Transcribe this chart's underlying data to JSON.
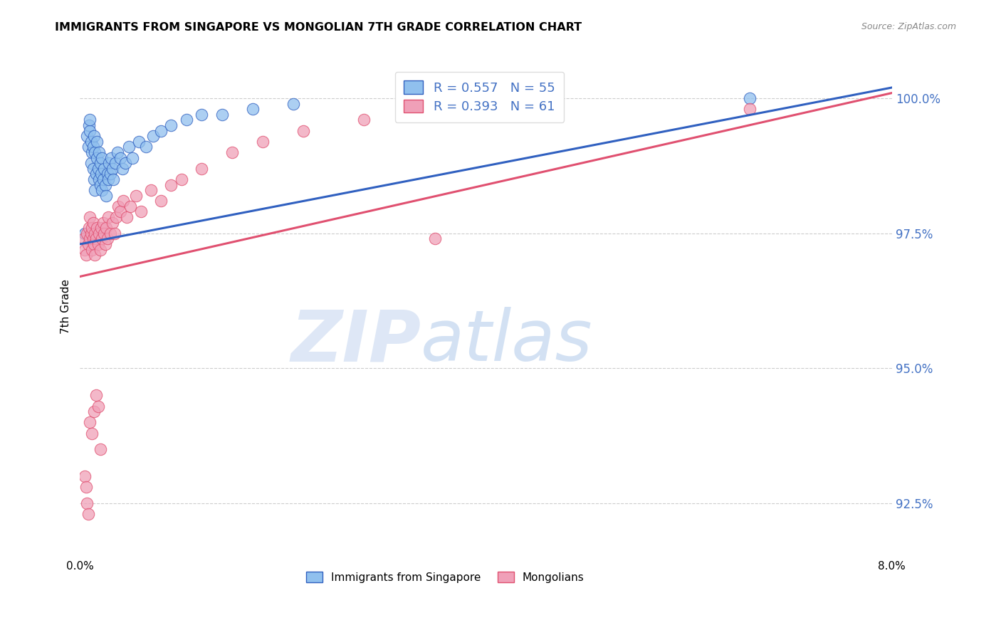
{
  "title": "IMMIGRANTS FROM SINGAPORE VS MONGOLIAN 7TH GRADE CORRELATION CHART",
  "source": "Source: ZipAtlas.com",
  "ylabel": "7th Grade",
  "xlim": [
    0.0,
    8.0
  ],
  "ylim": [
    91.5,
    100.8
  ],
  "yticks": [
    92.5,
    95.0,
    97.5,
    100.0
  ],
  "xtick_positions": [
    0.0,
    2.0,
    4.0,
    6.0,
    8.0
  ],
  "r_singapore": 0.557,
  "n_singapore": 55,
  "r_mongolian": 0.393,
  "n_mongolian": 61,
  "color_singapore": "#90C0EE",
  "color_mongolian": "#F0A0B8",
  "line_color_singapore": "#3060C0",
  "line_color_mongolian": "#E05070",
  "sg_trend_x": [
    0.0,
    8.0
  ],
  "sg_trend_y": [
    97.3,
    100.2
  ],
  "mn_trend_x": [
    0.0,
    8.0
  ],
  "mn_trend_y": [
    96.7,
    100.1
  ],
  "singapore_x": [
    0.05,
    0.07,
    0.08,
    0.09,
    0.1,
    0.1,
    0.11,
    0.11,
    0.12,
    0.13,
    0.13,
    0.14,
    0.14,
    0.15,
    0.15,
    0.16,
    0.17,
    0.17,
    0.18,
    0.19,
    0.19,
    0.2,
    0.2,
    0.21,
    0.22,
    0.22,
    0.23,
    0.24,
    0.25,
    0.26,
    0.27,
    0.28,
    0.29,
    0.3,
    0.31,
    0.32,
    0.33,
    0.35,
    0.37,
    0.4,
    0.42,
    0.45,
    0.48,
    0.52,
    0.58,
    0.65,
    0.72,
    0.8,
    0.9,
    1.05,
    1.2,
    1.4,
    1.7,
    2.1,
    6.6
  ],
  "singapore_y": [
    97.5,
    99.3,
    99.1,
    99.5,
    99.4,
    99.6,
    99.2,
    98.8,
    99.0,
    98.7,
    99.1,
    98.5,
    99.3,
    98.3,
    99.0,
    98.6,
    98.9,
    99.2,
    98.7,
    98.5,
    99.0,
    98.4,
    98.8,
    98.6,
    98.3,
    98.9,
    98.5,
    98.7,
    98.4,
    98.2,
    98.6,
    98.5,
    98.8,
    98.6,
    98.9,
    98.7,
    98.5,
    98.8,
    99.0,
    98.9,
    98.7,
    98.8,
    99.1,
    98.9,
    99.2,
    99.1,
    99.3,
    99.4,
    99.5,
    99.6,
    99.7,
    99.7,
    99.8,
    99.9,
    100.0
  ],
  "mongolian_x": [
    0.04,
    0.05,
    0.06,
    0.07,
    0.08,
    0.09,
    0.1,
    0.1,
    0.11,
    0.12,
    0.12,
    0.13,
    0.13,
    0.14,
    0.15,
    0.15,
    0.16,
    0.17,
    0.18,
    0.19,
    0.2,
    0.21,
    0.22,
    0.23,
    0.24,
    0.25,
    0.26,
    0.27,
    0.28,
    0.3,
    0.32,
    0.34,
    0.36,
    0.38,
    0.4,
    0.43,
    0.46,
    0.5,
    0.55,
    0.6,
    0.7,
    0.8,
    0.9,
    1.0,
    1.2,
    1.5,
    1.8,
    2.2,
    2.8,
    3.5,
    0.05,
    0.06,
    0.07,
    0.08,
    0.1,
    0.12,
    0.14,
    0.16,
    0.18,
    0.2,
    6.6
  ],
  "mongolian_y": [
    97.4,
    97.2,
    97.1,
    97.5,
    97.3,
    97.6,
    97.4,
    97.8,
    97.5,
    97.2,
    97.6,
    97.4,
    97.7,
    97.3,
    97.5,
    97.1,
    97.4,
    97.6,
    97.3,
    97.5,
    97.2,
    97.6,
    97.4,
    97.7,
    97.5,
    97.3,
    97.6,
    97.4,
    97.8,
    97.5,
    97.7,
    97.5,
    97.8,
    98.0,
    97.9,
    98.1,
    97.8,
    98.0,
    98.2,
    97.9,
    98.3,
    98.1,
    98.4,
    98.5,
    98.7,
    99.0,
    99.2,
    99.4,
    99.6,
    97.4,
    93.0,
    92.8,
    92.5,
    92.3,
    94.0,
    93.8,
    94.2,
    94.5,
    94.3,
    93.5,
    99.8
  ]
}
